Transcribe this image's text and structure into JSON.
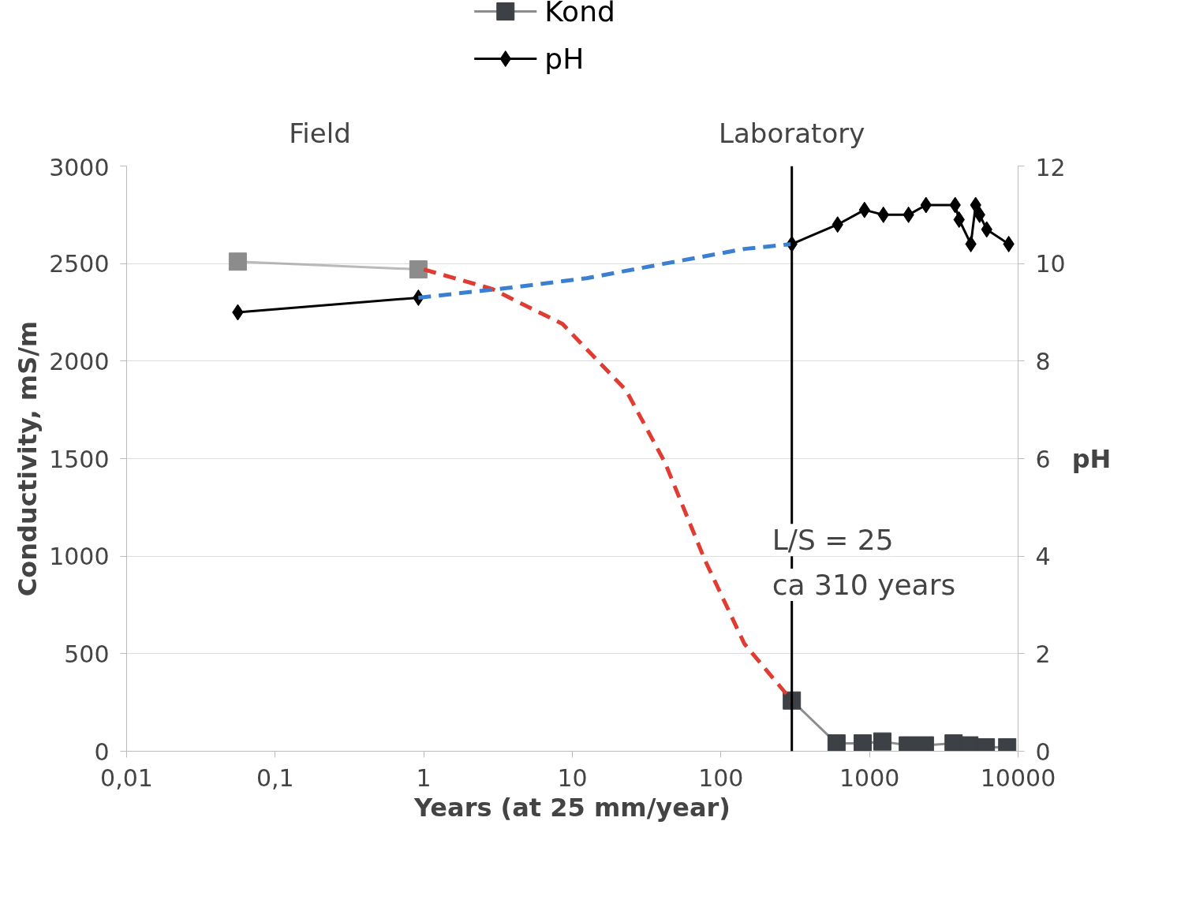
{
  "chart_data": {
    "type": "line",
    "xlabel": "Years (at 25 mm/year)",
    "ylabel": "Conductivity, mS/m",
    "y2label": "pH",
    "log": "x",
    "grid": "y",
    "legend": "top",
    "xlim": [
      0.01,
      10000
    ],
    "xticks": [
      {
        "value": 0.01,
        "label": "0,01"
      },
      {
        "value": 0.1,
        "label": "0,1"
      },
      1,
      10,
      100,
      1000,
      10000
    ],
    "ylim": [
      0,
      3000
    ],
    "yticks": [
      0,
      500,
      1000,
      1500,
      2000,
      2500,
      3000
    ],
    "y2lim": [
      0,
      12
    ],
    "y2ticks": [
      0,
      2,
      4,
      6,
      8,
      10,
      12
    ],
    "annotations": [
      "Field",
      "Laboratory",
      {
        "text": "L/S = 25",
        "x": 300,
        "y": 1000
      },
      {
        "text": "ca 310 years",
        "x": 300,
        "y": 770
      }
    ],
    "ref_lines": [
      {
        "axis": "x",
        "value": 300,
        "color": "#000000"
      }
    ],
    "series": [
      {
        "color": "#8c8c8c",
        "marker": "square",
        "x": [
          0.056,
          0.92
        ],
        "values": [
          2510,
          2470
        ]
      },
      {
        "color": "#3d4145",
        "marker": "square",
        "name": "Kond",
        "x": [
          300,
          600,
          900,
          1220,
          1810,
          2360,
          3680,
          4700,
          6070,
          8450
        ],
        "values": [
          260,
          40,
          40,
          50,
          30,
          30,
          40,
          30,
          20,
          20
        ]
      },
      {
        "color": "#e03c31",
        "marker": "none",
        "line_style": "dashed",
        "x": [
          1,
          2.88,
          8.6,
          23,
          42,
          78,
          144,
          300
        ],
        "values": [
          2470,
          2370,
          2190,
          1850,
          1480,
          980,
          550,
          260
        ]
      },
      {
        "color": "#000000",
        "marker": "diamond",
        "axis": "y2",
        "x": [
          0.056,
          0.92
        ],
        "values": [
          9.0,
          9.3
        ]
      },
      {
        "color": "#000000",
        "marker": "diamond",
        "axis": "y2",
        "name": "pH",
        "x": [
          300,
          610,
          925,
          1240,
          1830,
          2400,
          3770,
          4010,
          4810,
          5180,
          5510,
          6150,
          8650
        ],
        "values": [
          10.4,
          10.8,
          11.1,
          11.0,
          11.0,
          11.2,
          11.2,
          10.9,
          10.4,
          11.2,
          11.0,
          10.7,
          10.4
        ]
      },
      {
        "color": "#3a7fd0",
        "marker": "none",
        "line_style": "dashed",
        "axis": "y2",
        "x": [
          0.92,
          3.7,
          12.5,
          42,
          144,
          300
        ],
        "values": [
          9.3,
          9.5,
          9.7,
          10.0,
          10.3,
          10.4
        ]
      }
    ]
  }
}
